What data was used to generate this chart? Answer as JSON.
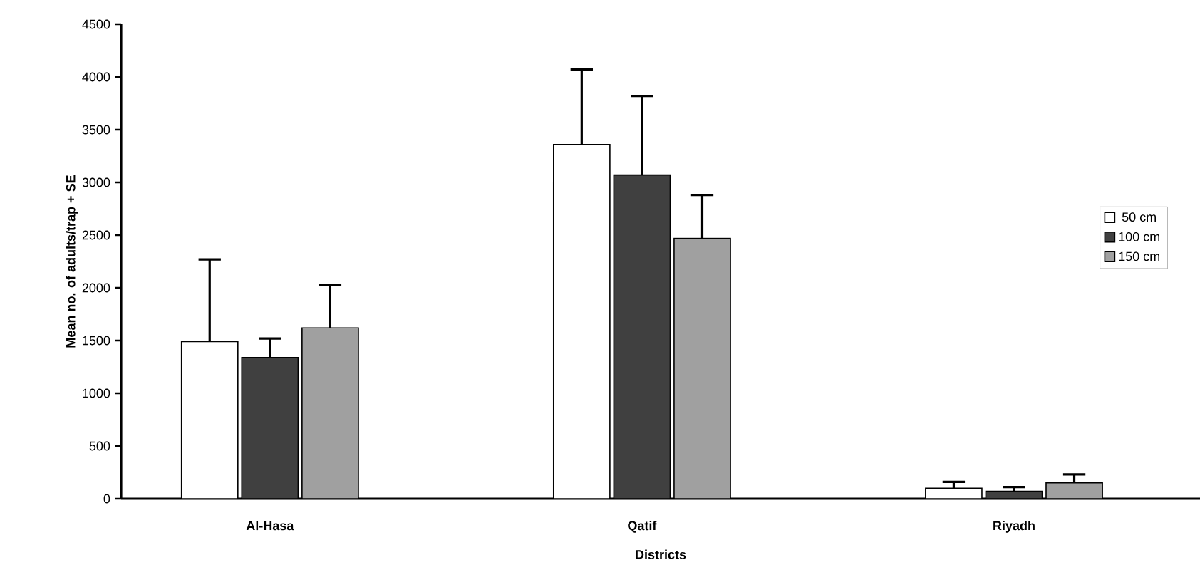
{
  "chart_data": {
    "type": "bar",
    "xlabel": "Districts",
    "ylabel": "Mean no. of adults/trap + SE",
    "categories": [
      "Al-Hasa",
      "Qatif",
      "Riyadh"
    ],
    "series": [
      {
        "name": "50 cm",
        "color": "#ffffff",
        "values": [
          1490,
          3360,
          100
        ],
        "errors": [
          [
            1490,
            2270
          ],
          [
            3360,
            4070
          ],
          [
            100,
            160
          ]
        ]
      },
      {
        "name": "100 cm",
        "color": "#404040",
        "values": [
          1340,
          3070,
          70
        ],
        "errors": [
          [
            1340,
            1520
          ],
          [
            3070,
            3820
          ],
          [
            70,
            110
          ]
        ]
      },
      {
        "name": "150 cm",
        "color": "#a0a0a0",
        "values": [
          1620,
          2470,
          150
        ],
        "errors": [
          [
            1620,
            2030
          ],
          [
            2470,
            2880
          ],
          [
            150,
            230
          ]
        ]
      }
    ],
    "ylim": [
      0,
      4500
    ],
    "yticks": [
      0,
      500,
      1000,
      1500,
      2000,
      2500,
      3000,
      3500,
      4000,
      4500
    ],
    "legend": "right",
    "grid": false
  }
}
